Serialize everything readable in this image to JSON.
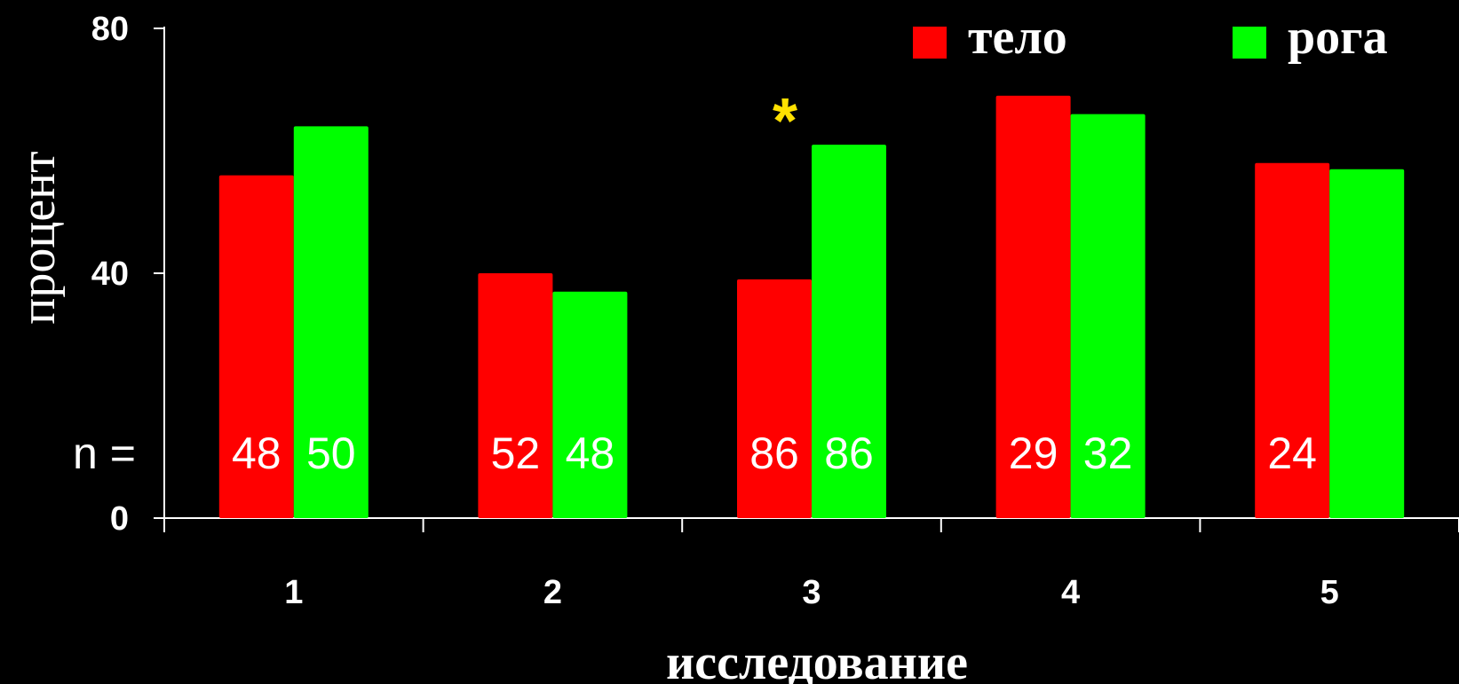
{
  "chart_data": {
    "type": "bar",
    "ylabel": "процент",
    "xlabel": "исследование",
    "ylim": [
      0,
      80
    ],
    "yticks": [
      "0",
      "40",
      "80"
    ],
    "categories": [
      "1",
      "2",
      "3",
      "4",
      "5"
    ],
    "series": [
      {
        "name": "тело",
        "color": "#ff0000",
        "values": [
          56,
          40,
          39,
          69,
          58
        ]
      },
      {
        "name": "рога",
        "color": "#00ff00",
        "values": [
          64,
          37,
          61,
          66,
          57
        ]
      }
    ],
    "n_prefix": "n =",
    "n_labels": [
      [
        "48",
        "50"
      ],
      [
        "52",
        "48"
      ],
      [
        "86",
        "86"
      ],
      [
        "29",
        "32"
      ],
      [
        "24",
        ""
      ]
    ],
    "annotations": [
      {
        "category": "3",
        "text": "*",
        "color": "#ffe000"
      }
    ],
    "legend_position": "top-right",
    "grid": false
  }
}
